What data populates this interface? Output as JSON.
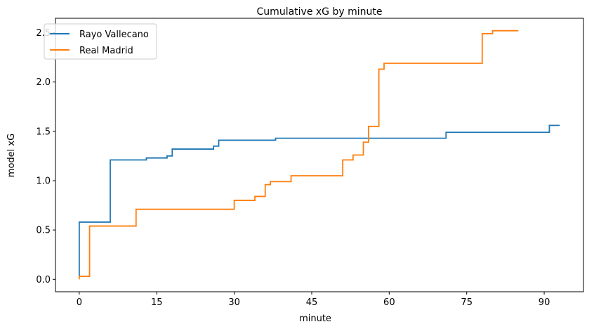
{
  "chart_data": {
    "type": "line",
    "step": "post",
    "title": "Cumulative xG by minute",
    "xlabel": "minute",
    "ylabel": "model xG",
    "xlim": [
      -4.6,
      97.6
    ],
    "ylim": [
      -0.126,
      2.646
    ],
    "xticks": [
      0,
      15,
      30,
      45,
      60,
      75,
      90
    ],
    "yticks": [
      0.0,
      0.5,
      1.0,
      1.5,
      2.0,
      2.5
    ],
    "xtick_labels": [
      "0",
      "15",
      "30",
      "45",
      "60",
      "75",
      "90"
    ],
    "ytick_labels": [
      "0.0",
      "0.5",
      "1.0",
      "1.5",
      "2.0",
      "2.5"
    ],
    "grid": false,
    "legend_position": "top-left",
    "series": [
      {
        "name": "Rayo Vallecano",
        "color": "#1f77b4",
        "x": [
          0,
          0,
          6,
          13,
          17,
          18,
          26,
          27,
          38,
          71,
          91,
          93
        ],
        "y": [
          0.03,
          0.58,
          1.21,
          1.23,
          1.25,
          1.32,
          1.35,
          1.41,
          1.43,
          1.49,
          1.56,
          1.56
        ]
      },
      {
        "name": "Real Madrid",
        "color": "#ff7f0e",
        "x": [
          0,
          0,
          2,
          11,
          30,
          34,
          36,
          37,
          41,
          51,
          53,
          55,
          56,
          58,
          59,
          78,
          80,
          85
        ],
        "y": [
          0.0,
          0.03,
          0.54,
          0.71,
          0.8,
          0.84,
          0.96,
          0.99,
          1.05,
          1.21,
          1.26,
          1.39,
          1.55,
          2.13,
          2.19,
          2.49,
          2.52,
          2.52
        ]
      }
    ]
  }
}
